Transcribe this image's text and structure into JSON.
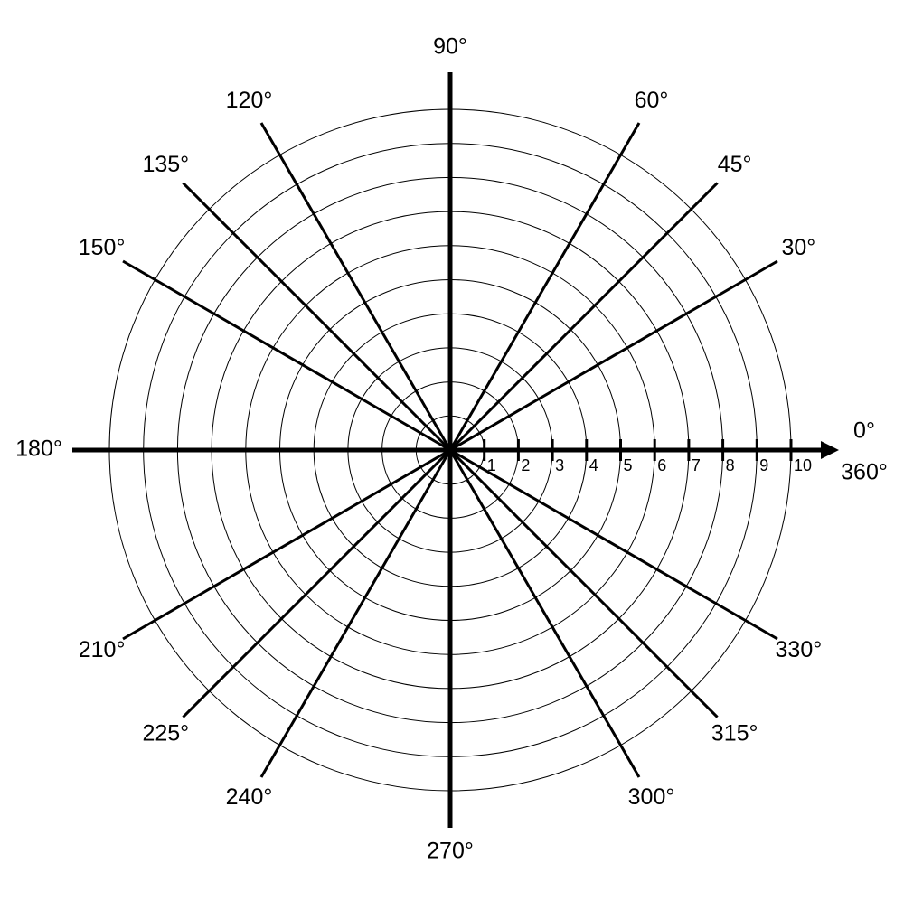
{
  "chart_data": {
    "type": "polar",
    "rlim": [
      0,
      10
    ],
    "rticks": [
      1,
      2,
      3,
      4,
      5,
      6,
      7,
      8,
      9,
      10
    ],
    "thetaticks": [
      {
        "value": 0,
        "label": "0°"
      },
      {
        "value": 30,
        "label": "30°"
      },
      {
        "value": 45,
        "label": "45°"
      },
      {
        "value": 60,
        "label": "60°"
      },
      {
        "value": 90,
        "label": "90°"
      },
      {
        "value": 120,
        "label": "120°"
      },
      {
        "value": 135,
        "label": "135°"
      },
      {
        "value": 150,
        "label": "150°"
      },
      {
        "value": 180,
        "label": "180°"
      },
      {
        "value": 210,
        "label": "210°"
      },
      {
        "value": 225,
        "label": "225°"
      },
      {
        "value": 240,
        "label": "240°"
      },
      {
        "value": 270,
        "label": "270°"
      },
      {
        "value": 300,
        "label": "300°"
      },
      {
        "value": 315,
        "label": "315°"
      },
      {
        "value": 330,
        "label": "330°"
      },
      {
        "value": 360,
        "label": "360°"
      }
    ],
    "grid": true
  }
}
